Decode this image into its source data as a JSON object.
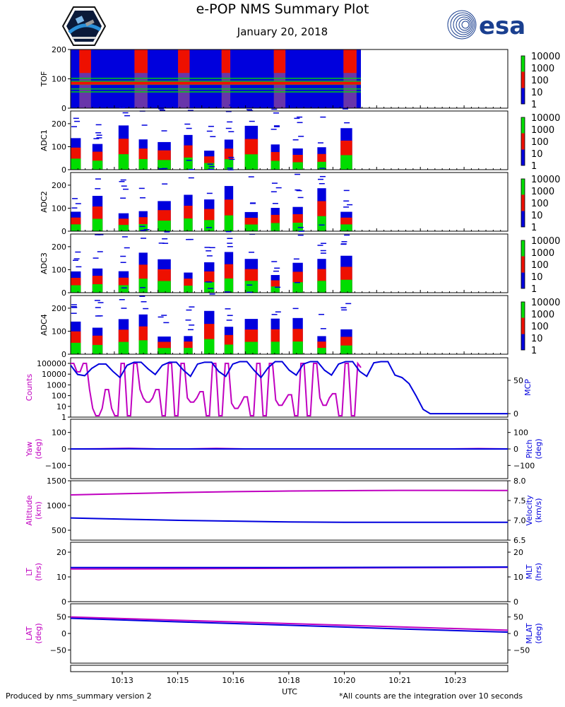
{
  "header": {
    "title": "e-POP NMS Summary Plot",
    "date": "January 20, 2018"
  },
  "logos": {
    "left": "satellite-mission-logo",
    "right": "esa"
  },
  "footer": {
    "left": "Produced by nms_summary version 2",
    "right": "*All counts are the integration over 10 seconds"
  },
  "colors": {
    "magenta": "#c000c0",
    "blue": "#0000dd",
    "red": "#ee1000",
    "green": "#00dd00"
  },
  "chart_data": {
    "type": "multi-panel-timeseries",
    "x_axis": {
      "label": "UTC",
      "tick_labels": [
        "10:13",
        "10:15",
        "10:16",
        "10:18",
        "10:20",
        "10:21",
        "10:23"
      ]
    },
    "colorbar_ticks": [
      "10000",
      "1000",
      "100",
      "10",
      "1"
    ],
    "spectrograms": [
      {
        "ylabel": "TOF",
        "yticks": [
          "200",
          "100",
          "0"
        ],
        "ylim": [
          0,
          200
        ]
      },
      {
        "ylabel": "ADC1",
        "yticks": [
          "200",
          "100",
          "0"
        ],
        "ylim": [
          0,
          255
        ]
      },
      {
        "ylabel": "ADC2",
        "yticks": [
          "200",
          "100",
          "0"
        ],
        "ylim": [
          0,
          255
        ]
      },
      {
        "ylabel": "ADC3",
        "yticks": [
          "200",
          "100",
          "0"
        ],
        "ylim": [
          0,
          255
        ]
      },
      {
        "ylabel": "ADC4",
        "yticks": [
          "200",
          "100",
          "0"
        ],
        "ylim": [
          0,
          255
        ]
      }
    ],
    "counts_panel": {
      "left_label": "Counts",
      "left_ticks": [
        "100000",
        "10000",
        "1000",
        "100",
        "10",
        "1"
      ],
      "right_label": "MCP",
      "right_ticks": [
        "50",
        "0"
      ],
      "counts_log10": [
        5,
        5,
        4.2,
        4.2,
        5,
        5,
        2.5,
        0.7,
        0,
        0,
        0.7,
        2.5,
        2.5,
        0.7,
        0,
        0,
        5,
        5,
        0,
        0,
        5,
        5,
        2.5,
        1.7,
        1.3,
        1.3,
        1.7,
        2.5,
        2.5,
        0,
        0,
        5,
        5,
        0,
        0,
        5,
        5,
        1.7,
        1.3,
        1.3,
        1.7,
        2.3,
        2.3,
        0,
        0,
        5,
        5,
        0,
        0,
        5,
        5,
        1.2,
        0.7,
        0.7,
        1.2,
        1.8,
        1.8,
        0,
        0,
        5,
        5,
        0,
        0,
        5,
        5,
        1.5,
        1.0,
        1.0,
        1.5,
        2.0,
        2.0,
        0,
        0,
        5,
        5,
        0,
        0,
        5,
        5,
        1.7,
        1.0,
        1.0,
        1.7,
        2.1,
        2.1,
        0,
        0,
        5,
        5,
        0,
        0,
        5,
        4.6
      ],
      "mcp": [
        80,
        65,
        63,
        75,
        82,
        82,
        70,
        60,
        80,
        85,
        85,
        74,
        65,
        80,
        85,
        85,
        72,
        62,
        82,
        85,
        85,
        70,
        62,
        82,
        86,
        86,
        72,
        60,
        76,
        86,
        86,
        72,
        64,
        82,
        86,
        86,
        72,
        64,
        82,
        86,
        86,
        70,
        62,
        84,
        86,
        86,
        64,
        60,
        50,
        30,
        8,
        1,
        1,
        1,
        1,
        1,
        1,
        1,
        1,
        1,
        1,
        1,
        1
      ]
    },
    "line_panels": [
      {
        "left_label": [
          "Yaw",
          "(deg)"
        ],
        "left_ticks": [
          "100",
          "0",
          "−100"
        ],
        "left_lim": [
          -180,
          180
        ],
        "right_label": [
          "Pitch",
          "(deg)"
        ],
        "right_ticks": [
          "100",
          "0",
          "−100"
        ],
        "right_lim": [
          -180,
          180
        ],
        "left_series": [
          0,
          1,
          4,
          0,
          0,
          3,
          0,
          0,
          0,
          0,
          0,
          0,
          0,
          0,
          2,
          0
        ],
        "right_series": [
          0,
          0,
          1,
          0,
          0,
          0,
          0,
          0,
          0,
          0,
          0,
          0,
          0,
          0,
          0,
          0
        ]
      },
      {
        "left_label": [
          "Altitude",
          "(km)"
        ],
        "left_ticks": [
          "1500",
          "1000",
          "500"
        ],
        "left_lim": [
          300,
          1500
        ],
        "right_label": [
          "Velocity",
          "(km/s)"
        ],
        "right_ticks": [
          "8.0",
          "7.5",
          "7.0",
          "6.5"
        ],
        "right_lim": [
          6.5,
          8.0
        ],
        "left_series": [
          1215,
          1240,
          1262,
          1280,
          1292,
          1300,
          1305,
          1305,
          1303
        ],
        "right_series": [
          7.06,
          7.03,
          7.0,
          6.98,
          6.96,
          6.95,
          6.95,
          6.95,
          6.95
        ]
      },
      {
        "left_label": [
          "LT",
          "(hrs)"
        ],
        "left_ticks": [
          "20",
          "10",
          "0"
        ],
        "left_lim": [
          0,
          24
        ],
        "right_label": [
          "MLT",
          "(hrs)"
        ],
        "right_ticks": [
          "20",
          "10",
          "0"
        ],
        "right_lim": [
          0,
          24
        ],
        "left_series": [
          13.2,
          13.3,
          13.5,
          13.7,
          13.9
        ],
        "right_series": [
          13.8,
          13.8,
          13.8,
          13.9,
          14.0
        ]
      },
      {
        "left_label": [
          "LAT",
          "(deg)"
        ],
        "left_ticks": [
          "50",
          "0",
          "−50"
        ],
        "left_lim": [
          -90,
          90
        ],
        "right_label": [
          "MLAT",
          "(deg)"
        ],
        "right_ticks": [
          "50",
          "0",
          "−50"
        ],
        "right_lim": [
          -90,
          90
        ],
        "left_series": [
          50,
          40,
          30,
          20,
          10
        ],
        "right_series": [
          46,
          35,
          25,
          14,
          4
        ]
      }
    ]
  }
}
